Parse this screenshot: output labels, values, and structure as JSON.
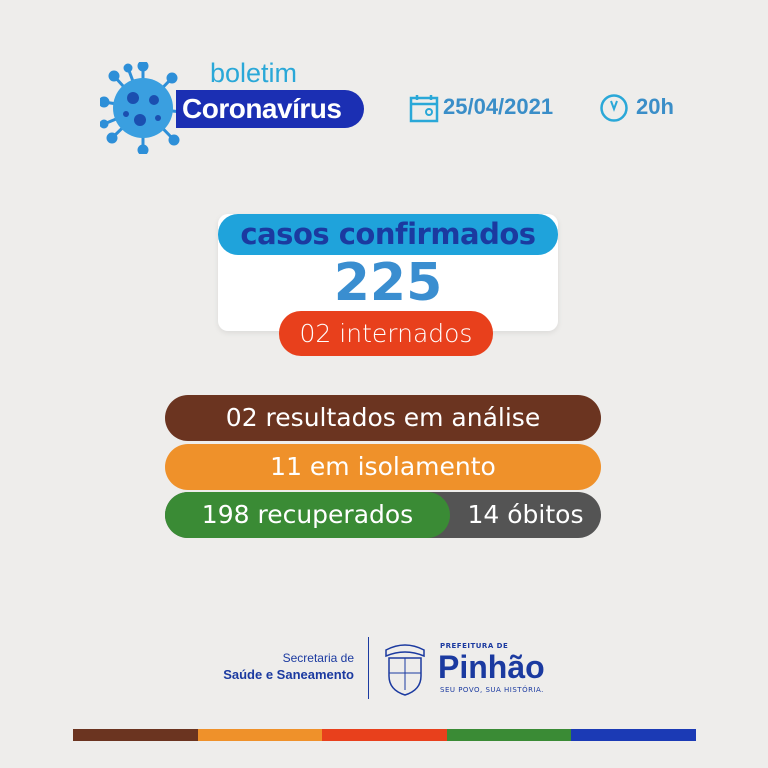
{
  "header": {
    "boletim": "boletim",
    "title": "Coronavírus",
    "date": "25/04/2021",
    "time": "20h",
    "icons": [
      "virus-icon",
      "calendar-icon",
      "clock-icon"
    ]
  },
  "cases": {
    "label": "casos confirmados",
    "total": "225",
    "hospitalized": "02 internados"
  },
  "stats": {
    "analysis": "02 resultados em análise",
    "isolation": "11 em isolamento",
    "recovered": "198 recuperados",
    "deaths": "14 óbitos"
  },
  "footer": {
    "secretaria_line1": "Secretaria de",
    "secretaria_line2": "Saúde e Saneamento",
    "prefeitura": "PREFEITURA DE",
    "city": "Pinhão",
    "slogan": "SEU POVO, SUA HISTÓRIA.",
    "crest_text": "PINHÃO"
  },
  "colors": {
    "brown": "#6b3420",
    "orange": "#ef912a",
    "red": "#e8401c",
    "green": "#3a8b35",
    "blue": "#1b3ab5",
    "gray": "#545454",
    "light_blue": "#1fa3db"
  }
}
